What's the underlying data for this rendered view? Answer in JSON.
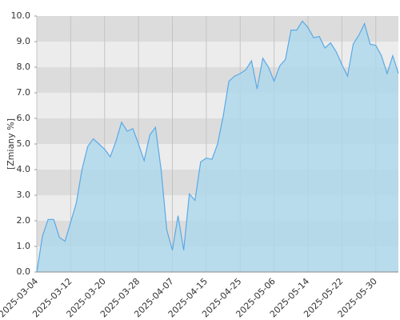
{
  "chart_data": {
    "type": "area",
    "y_label": "[Zmiany %]",
    "categories": [
      "2025-03-04",
      null,
      null,
      null,
      null,
      null,
      "2025-03-12",
      null,
      null,
      null,
      null,
      null,
      "2025-03-20",
      null,
      null,
      null,
      null,
      null,
      "2025-03-28",
      null,
      null,
      null,
      null,
      null,
      "2025-04-07",
      null,
      null,
      null,
      null,
      null,
      "2025-04-15",
      null,
      null,
      null,
      null,
      null,
      "2025-04-25",
      null,
      null,
      null,
      null,
      null,
      "2025-05-06",
      null,
      null,
      null,
      null,
      null,
      "2025-05-14",
      null,
      null,
      null,
      null,
      null,
      "2025-05-22",
      null,
      null,
      null,
      null,
      null,
      "2025-05-30",
      null,
      null,
      null,
      null
    ],
    "values": [
      0,
      1.4,
      2.05,
      2.05,
      1.35,
      1.2,
      1.95,
      2.7,
      4.0,
      4.9,
      5.2,
      5.0,
      4.8,
      4.5,
      5.1,
      5.85,
      5.5,
      5.6,
      5.0,
      4.35,
      5.35,
      5.65,
      4.0,
      1.65,
      0.85,
      2.2,
      0.85,
      3.05,
      2.8,
      4.3,
      4.45,
      4.4,
      5.0,
      6.1,
      7.45,
      7.65,
      7.75,
      7.9,
      8.25,
      7.15,
      8.35,
      8.0,
      7.45,
      8.05,
      8.3,
      9.45,
      9.45,
      9.8,
      9.55,
      9.15,
      9.2,
      8.75,
      8.95,
      8.6,
      8.1,
      7.65,
      8.9,
      9.25,
      9.7,
      8.9,
      8.85,
      8.45,
      7.75,
      8.45,
      7.75
    ],
    "line_color": "#5aa9e6",
    "fill_color": "#add8ec",
    "ylim": [
      0,
      10
    ],
    "yticks": [
      {
        "value": 0,
        "label": "0.0"
      },
      {
        "value": 1,
        "label": "1.0"
      },
      {
        "value": 2,
        "label": "2.0"
      },
      {
        "value": 3,
        "label": "3.0"
      },
      {
        "value": 4,
        "label": "4.0"
      },
      {
        "value": 5,
        "label": "5.0"
      },
      {
        "value": 6,
        "label": "6.0"
      },
      {
        "value": 7,
        "label": "7.0"
      },
      {
        "value": 8,
        "label": "8.0"
      },
      {
        "value": 9,
        "label": "9.0"
      },
      {
        "value": 10,
        "label": "10.0"
      }
    ],
    "grid": true
  }
}
